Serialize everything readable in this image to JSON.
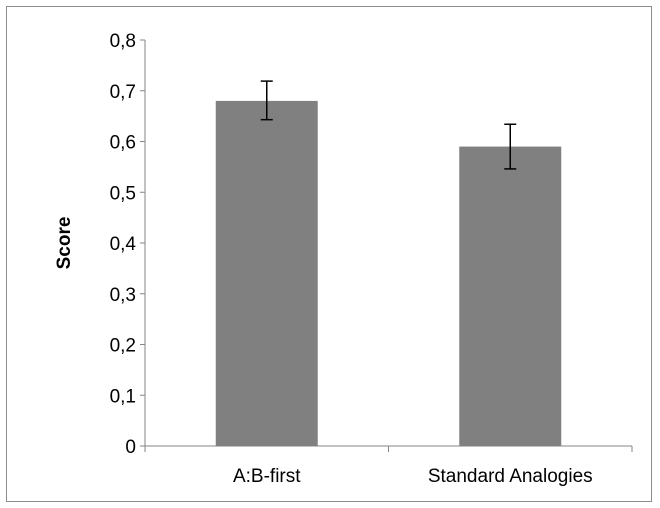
{
  "chart_data": {
    "type": "bar",
    "title": "",
    "xlabel": "",
    "ylabel": "Score",
    "ylim": [
      0,
      0.8
    ],
    "y_ticks": [
      "0",
      "0,1",
      "0,2",
      "0,3",
      "0,4",
      "0,5",
      "0,6",
      "0,7",
      "0,8"
    ],
    "categories": [
      "A:B-first",
      "Standard Analogies"
    ],
    "values": [
      0.68,
      0.59
    ],
    "error_bars": [
      {
        "low": 0.643,
        "high": 0.719
      },
      {
        "low": 0.546,
        "high": 0.634
      }
    ],
    "bar_color": "#808080",
    "grid": false,
    "legend": "none"
  }
}
